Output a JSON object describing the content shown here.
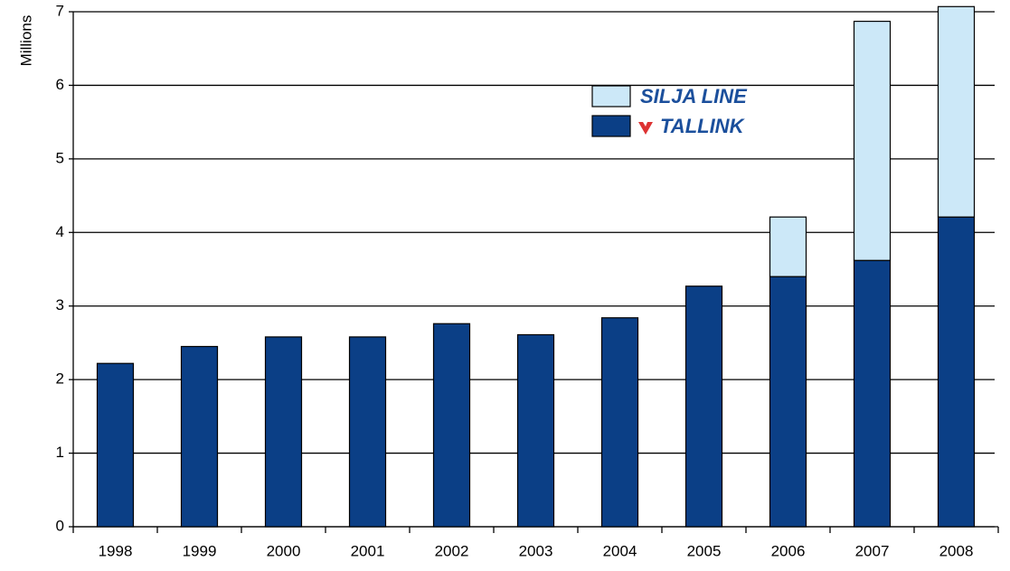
{
  "chart_data": {
    "type": "stacked_bar",
    "y_label": "Millions",
    "categories": [
      "1998",
      "1999",
      "2000",
      "2001",
      "2002",
      "2003",
      "2004",
      "2005",
      "2006",
      "2007",
      "2008"
    ],
    "series": [
      {
        "name": "TALLINK",
        "color": "#0b3f86",
        "values": [
          2.22,
          2.45,
          2.58,
          2.58,
          2.76,
          2.61,
          2.84,
          3.27,
          3.4,
          3.62,
          4.21
        ]
      },
      {
        "name": "SILJA LINE",
        "color": "#cce8f8",
        "values": [
          null,
          null,
          null,
          null,
          null,
          null,
          null,
          null,
          0.81,
          3.25,
          2.86
        ]
      }
    ],
    "ylim": [
      0,
      7
    ],
    "yticks": [
      0,
      1,
      2,
      3,
      4,
      5,
      6,
      7
    ],
    "grid": true
  }
}
